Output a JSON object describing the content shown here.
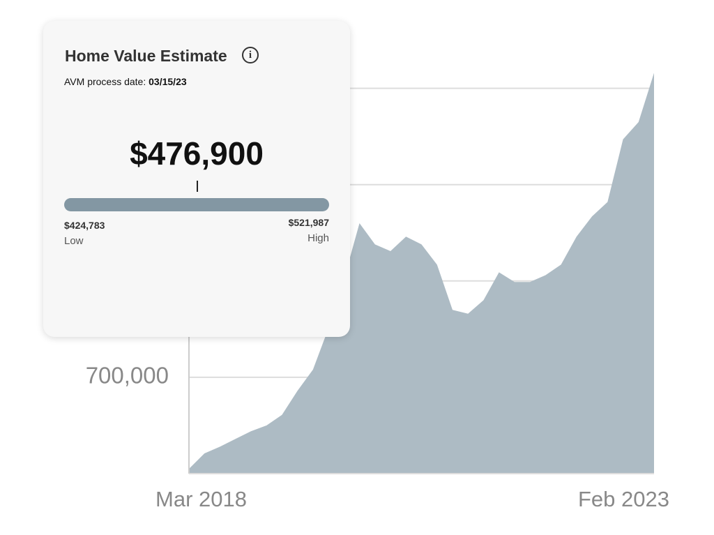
{
  "chart_data": {
    "type": "area",
    "color": "#adbbc4",
    "categories": [
      "Mar 2018",
      null,
      null,
      null,
      null,
      null,
      null,
      null,
      null,
      null,
      null,
      null,
      null,
      null,
      null,
      null,
      null,
      null,
      null,
      null,
      null,
      null,
      null,
      null,
      null,
      null,
      null,
      null,
      null,
      null,
      "Feb 2023"
    ],
    "values": [
      605000,
      621000,
      628000,
      636000,
      644000,
      650000,
      661000,
      686000,
      708000,
      751000,
      802000,
      860000,
      838000,
      831000,
      846000,
      838000,
      817000,
      770000,
      766000,
      780000,
      809000,
      799000,
      799000,
      806000,
      817000,
      846000,
      867000,
      882000,
      947000,
      965000,
      1016000
    ],
    "ylim": [
      600000,
      1020000
    ],
    "yticks": [
      {
        "value": 700000,
        "label": "700,000"
      }
    ],
    "grid_lines": [
      800000,
      900000,
      1000000
    ]
  },
  "card": {
    "title": "Home Value Estimate",
    "date_label": "AVM process date:",
    "date": "03/15/23",
    "estimate": "$476,900",
    "low_value": "$424,783",
    "low_label": "Low",
    "high_value": "$521,987",
    "high_label": "High"
  }
}
